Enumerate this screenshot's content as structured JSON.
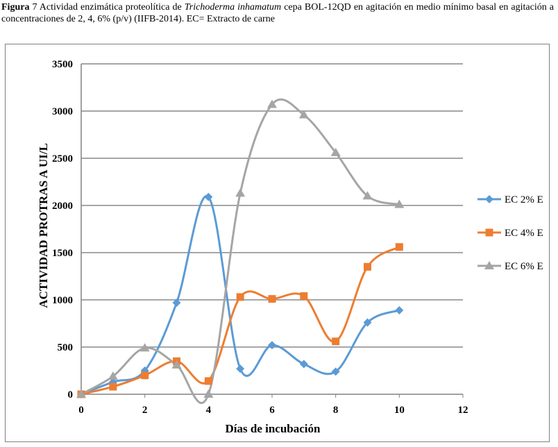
{
  "caption": {
    "figure_label": "Figura",
    "figure_number": "7",
    "text_before_italic": "Actividad enzimática proteolítica de",
    "species_italic": "Trichoderma inhamatum",
    "text_after_italic": "cepa BOL-12QD en agitación en medio mínimo basal en agitación a concentraciones de 2, 4, 6% (p/v) (IIFB-2014). EC= Extracto de carne"
  },
  "chart_data": {
    "type": "line",
    "title": "",
    "xlabel": "Días de incubación",
    "ylabel": "ACTIVIDAD PROTRAS A UI/L",
    "xlim": [
      0,
      12
    ],
    "ylim": [
      0,
      3500
    ],
    "xticks": [
      0,
      2,
      4,
      6,
      8,
      10,
      12
    ],
    "yticks": [
      0,
      500,
      1000,
      1500,
      2000,
      2500,
      3000,
      3500
    ],
    "grid": "horizontal",
    "legend_position": "right",
    "smoothed": true,
    "series": [
      {
        "name": "EC 2% E",
        "color": "#5b9bd5",
        "marker": "diamond",
        "x": [
          0,
          1,
          2,
          3,
          4,
          5,
          6,
          7,
          8,
          9,
          10
        ],
        "y": [
          0,
          130,
          250,
          970,
          2090,
          270,
          520,
          320,
          240,
          760,
          890
        ]
      },
      {
        "name": "EC 4% E",
        "color": "#ed7d31",
        "marker": "square",
        "x": [
          0,
          1,
          2,
          3,
          4,
          5,
          6,
          7,
          8,
          9,
          10
        ],
        "y": [
          0,
          80,
          200,
          350,
          140,
          1030,
          1010,
          1040,
          560,
          1350,
          1560
        ]
      },
      {
        "name": "EC 6% E",
        "color": "#a5a5a5",
        "marker": "triangle",
        "x": [
          0,
          1,
          2,
          3,
          4,
          5,
          6,
          7,
          8,
          9,
          10
        ],
        "y": [
          0,
          190,
          490,
          310,
          0,
          2130,
          3070,
          2960,
          2560,
          2100,
          2010
        ]
      }
    ]
  }
}
